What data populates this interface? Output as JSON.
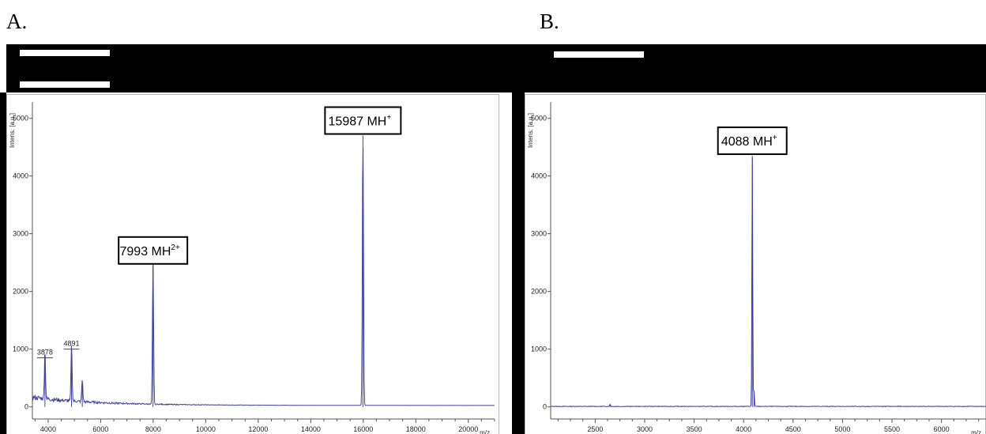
{
  "panels": [
    {
      "id": "A",
      "label": "A.",
      "chart_data": {
        "type": "line",
        "ylabel": "Intens. [a.u.]",
        "xlabel": "m/z",
        "xlim": [
          3400,
          21000
        ],
        "ylim": [
          -100,
          5200
        ],
        "xticks": [
          4000,
          6000,
          8000,
          10000,
          12000,
          14000,
          16000,
          18000,
          20000
        ],
        "yticks": [
          0,
          1000,
          2000,
          3000,
          4000,
          5000
        ],
        "peaks": [
          {
            "x": 3878,
            "y": 850
          },
          {
            "x": 4891,
            "y": 1000
          },
          {
            "x": 5300,
            "y": 380
          },
          {
            "x": 7993,
            "y": 2450
          },
          {
            "x": 15987,
            "y": 4700
          }
        ],
        "peak_labels": [
          {
            "x": 3878,
            "y": 850,
            "text": "3878"
          },
          {
            "x": 4891,
            "y": 1000,
            "text": "4891"
          }
        ],
        "callouts": [
          {
            "x": 7993,
            "y": 2450,
            "main": "7993 MH",
            "sup": "2+"
          },
          {
            "x": 15987,
            "y": 4700,
            "main": "15987 MH",
            "sup": "+"
          }
        ]
      }
    },
    {
      "id": "B",
      "label": "B.",
      "chart_data": {
        "type": "line",
        "ylabel": "Intens. [a.u.]",
        "xlabel": "m/z",
        "xlim": [
          2050,
          6450
        ],
        "ylim": [
          -100,
          5200
        ],
        "xticks": [
          2500,
          3000,
          3500,
          4000,
          4500,
          5000,
          5500,
          6000
        ],
        "yticks": [
          0,
          1000,
          2000,
          3000,
          4000,
          5000
        ],
        "peaks": [
          {
            "x": 2650,
            "y": 40
          },
          {
            "x": 4088,
            "y": 4350
          },
          {
            "x": 4105,
            "y": 280
          }
        ],
        "peak_labels": [],
        "callouts": [
          {
            "x": 4088,
            "y": 4350,
            "main": "4088 MH",
            "sup": "+"
          }
        ]
      }
    }
  ]
}
